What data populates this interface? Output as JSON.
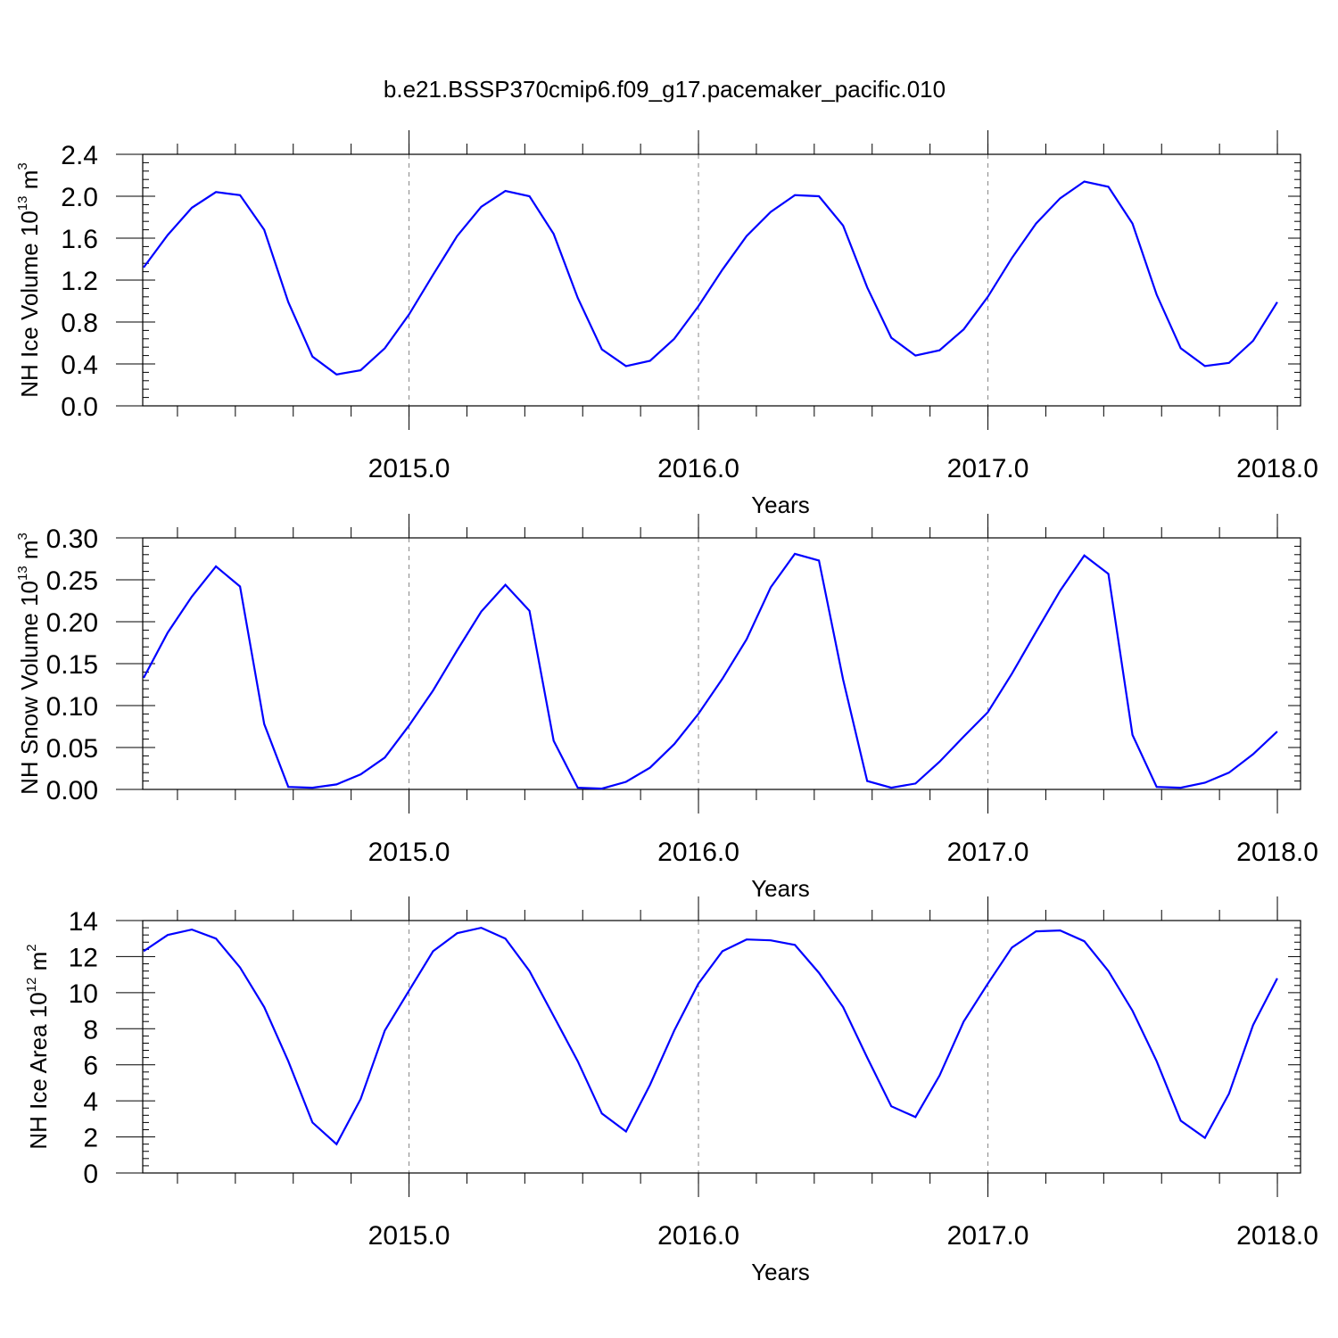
{
  "title": "b.e21.BSSP370cmip6.f09_g17.pacemaker_pacific.010",
  "chart_data": [
    {
      "type": "line",
      "title": "",
      "xlabel": "Years",
      "ylabel": {
        "prefix": "NH Ice Volume 10",
        "exp": "13",
        "mid": " m",
        "unit_exp": "3"
      },
      "xlim": [
        2014.08,
        2018.08
      ],
      "ylim": [
        0,
        2.4
      ],
      "xticks": [
        2015,
        2016,
        2017,
        2018
      ],
      "xtick_labels": [
        "2015.0",
        "2016.0",
        "2017.0",
        "2018.0"
      ],
      "yticks": [
        0,
        0.4,
        0.8,
        1.2,
        1.6,
        2.0,
        2.4
      ],
      "ytick_labels": [
        "0.0",
        "0.4",
        "0.8",
        "1.2",
        "1.6",
        "2.0",
        "2.4"
      ],
      "grid": "vertical dashed at year marks",
      "series": [
        {
          "color": "#0000ff",
          "x_start": 2014.083,
          "x_step": 0.08333,
          "values": [
            1.32,
            1.63,
            1.89,
            2.04,
            2.01,
            1.68,
            0.99,
            0.47,
            0.3,
            0.34,
            0.55,
            0.87,
            1.25,
            1.62,
            1.9,
            2.05,
            2.0,
            1.64,
            1.03,
            0.54,
            0.38,
            0.43,
            0.64,
            0.95,
            1.3,
            1.62,
            1.85,
            2.01,
            2.0,
            1.72,
            1.13,
            0.65,
            0.48,
            0.53,
            0.73,
            1.04,
            1.41,
            1.74,
            1.98,
            2.14,
            2.09,
            1.74,
            1.06,
            0.55,
            0.38,
            0.41,
            0.62,
            0.99
          ]
        }
      ]
    },
    {
      "type": "line",
      "title": "",
      "xlabel": "Years",
      "ylabel": {
        "prefix": "NH Snow Volume 10",
        "exp": "13",
        "mid": " m",
        "unit_exp": "3"
      },
      "xlim": [
        2014.08,
        2018.08
      ],
      "ylim": [
        0,
        0.3
      ],
      "xticks": [
        2015,
        2016,
        2017,
        2018
      ],
      "xtick_labels": [
        "2015.0",
        "2016.0",
        "2017.0",
        "2018.0"
      ],
      "yticks": [
        0,
        0.05,
        0.1,
        0.15,
        0.2,
        0.25,
        0.3
      ],
      "ytick_labels": [
        "0.00",
        "0.05",
        "0.10",
        "0.15",
        "0.20",
        "0.25",
        "0.30"
      ],
      "grid": "vertical dashed at year marks",
      "series": [
        {
          "color": "#0000ff",
          "x_start": 2014.083,
          "x_step": 0.08333,
          "values": [
            0.133,
            0.187,
            0.23,
            0.266,
            0.242,
            0.078,
            0.003,
            0.002,
            0.006,
            0.018,
            0.038,
            0.076,
            0.118,
            0.166,
            0.212,
            0.244,
            0.213,
            0.058,
            0.002,
            0.001,
            0.009,
            0.026,
            0.054,
            0.09,
            0.132,
            0.179,
            0.241,
            0.281,
            0.273,
            0.131,
            0.01,
            0.002,
            0.007,
            0.033,
            0.063,
            0.092,
            0.138,
            0.188,
            0.237,
            0.279,
            0.257,
            0.065,
            0.003,
            0.002,
            0.008,
            0.02,
            0.042,
            0.069
          ]
        }
      ]
    },
    {
      "type": "line",
      "title": "",
      "xlabel": "Years",
      "ylabel": {
        "prefix": "NH Ice Area 10",
        "exp": "12",
        "mid": " m",
        "unit_exp": "2"
      },
      "xlim": [
        2014.08,
        2018.08
      ],
      "ylim": [
        0,
        14
      ],
      "xticks": [
        2015,
        2016,
        2017,
        2018
      ],
      "xtick_labels": [
        "2015.0",
        "2016.0",
        "2017.0",
        "2018.0"
      ],
      "yticks": [
        0,
        2,
        4,
        6,
        8,
        10,
        12,
        14
      ],
      "ytick_labels": [
        "0",
        "2",
        "4",
        "6",
        "8",
        "10",
        "12",
        "14"
      ],
      "grid": "vertical dashed at year marks",
      "series": [
        {
          "color": "#0000ff",
          "x_start": 2014.083,
          "x_step": 0.08333,
          "values": [
            12.3,
            13.2,
            13.5,
            13.0,
            11.4,
            9.2,
            6.2,
            2.8,
            1.6,
            4.1,
            7.9,
            10.1,
            12.3,
            13.3,
            13.6,
            13.0,
            11.2,
            8.7,
            6.2,
            3.3,
            2.3,
            4.9,
            7.9,
            10.5,
            12.3,
            12.95,
            12.9,
            12.65,
            11.1,
            9.2,
            6.4,
            3.7,
            3.1,
            5.4,
            8.4,
            10.5,
            12.5,
            13.4,
            13.45,
            12.85,
            11.2,
            9.0,
            6.2,
            2.9,
            1.95,
            4.4,
            8.2,
            10.8
          ]
        }
      ]
    }
  ]
}
